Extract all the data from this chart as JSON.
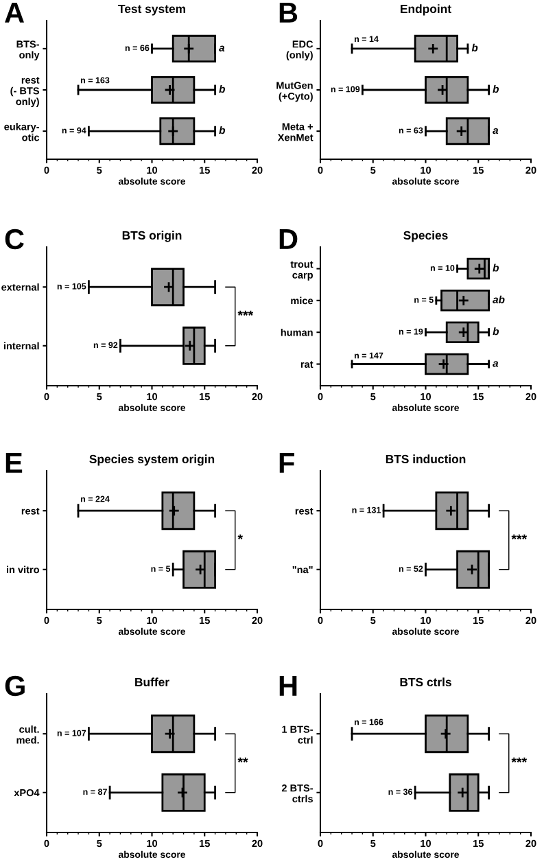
{
  "chart_data": [
    {
      "type": "box",
      "orientation": "horizontal",
      "title": "Test system",
      "xlabel": "absolute score",
      "xlim": [
        0,
        20
      ],
      "xticks": [
        0,
        5,
        10,
        15,
        20
      ],
      "color": "#999999",
      "categories": [
        "BTS-\nonly",
        "rest\n(- BTS\nonly)",
        "eukary-\notic"
      ],
      "boxes": [
        {
          "low": 10,
          "q1": 12,
          "median": 13.5,
          "q3": 16,
          "high": 16,
          "mean": 13.5
        },
        {
          "low": 3,
          "q1": 10,
          "median": 12,
          "q3": 14,
          "high": 16,
          "mean": 11.7
        },
        {
          "low": 4,
          "q1": 10.8,
          "median": 12,
          "q3": 14,
          "high": 16,
          "mean": 12
        }
      ],
      "annotations": [
        "A",
        {
          "text": "n = 66",
          "x": 10,
          "y": "BTS-\nonly"
        },
        {
          "text": "a",
          "x": 16,
          "y": "BTS-\nonly"
        },
        {
          "text": "n = 163",
          "x": 3,
          "y": "rest\n(- BTS\nonly)"
        },
        {
          "text": "b",
          "x": 16,
          "y": "rest\n(- BTS\nonly)"
        },
        {
          "text": "n = 94",
          "x": 4,
          "y": "eukary-\notic"
        },
        {
          "text": "b",
          "x": 16,
          "y": "eukary-\notic"
        }
      ]
    },
    {
      "type": "box",
      "orientation": "horizontal",
      "title": "Endpoint",
      "xlabel": "absolute score",
      "xlim": [
        0,
        20
      ],
      "xticks": [
        0,
        5,
        10,
        15,
        20
      ],
      "color": "#999999",
      "categories": [
        "EDC\n(only)",
        "MutGen\n(+Cyto)",
        "Meta +\nXenMet"
      ],
      "boxes": [
        {
          "low": 3,
          "q1": 9,
          "median": 12,
          "q3": 13,
          "high": 14,
          "mean": 10.7
        },
        {
          "low": 4,
          "q1": 10,
          "median": 12,
          "q3": 14,
          "high": 16,
          "mean": 11.6
        },
        {
          "low": 10,
          "q1": 12,
          "median": 14,
          "q3": 16,
          "high": 16,
          "mean": 13.4
        }
      ],
      "annotations": [
        "B",
        {
          "text": "n = 14",
          "x": 3,
          "y": "EDC\n(only)"
        },
        {
          "text": "b",
          "x": 14,
          "y": "EDC\n(only)"
        },
        {
          "text": "n = 109",
          "x": 4,
          "y": "MutGen\n(+Cyto)"
        },
        {
          "text": "b",
          "x": 16,
          "y": "MutGen\n(+Cyto)"
        },
        {
          "text": "n = 63",
          "x": 10,
          "y": "Meta +\nXenMet"
        },
        {
          "text": "a",
          "x": 16,
          "y": "Meta +\nXenMet"
        }
      ]
    },
    {
      "type": "box",
      "orientation": "horizontal",
      "title": "BTS origin",
      "xlabel": "absolute score",
      "xlim": [
        0,
        20
      ],
      "xticks": [
        0,
        5,
        10,
        15,
        20
      ],
      "color": "#999999",
      "categories": [
        "external",
        "internal"
      ],
      "boxes": [
        {
          "low": 4,
          "q1": 10,
          "median": 12,
          "q3": 13,
          "high": 16,
          "mean": 11.6
        },
        {
          "low": 7,
          "q1": 13,
          "median": 14,
          "q3": 15,
          "high": 16,
          "mean": 13.6
        }
      ],
      "annotations": [
        "C",
        "***",
        {
          "text": "n = 105",
          "x": 4,
          "y": "external"
        },
        {
          "text": "n = 92",
          "x": 7,
          "y": "internal"
        }
      ]
    },
    {
      "type": "box",
      "orientation": "horizontal",
      "title": "Species",
      "xlabel": "absolute score",
      "xlim": [
        0,
        20
      ],
      "xticks": [
        0,
        5,
        10,
        15,
        20
      ],
      "color": "#999999",
      "categories": [
        "trout\ncarp",
        "mice",
        "human",
        "rat"
      ],
      "boxes": [
        {
          "low": 13,
          "q1": 14,
          "median": 15.6,
          "q3": 16,
          "high": 16,
          "mean": 15.1
        },
        {
          "low": 11,
          "q1": 11.5,
          "median": 13,
          "q3": 16,
          "high": 16,
          "mean": 13.6
        },
        {
          "low": 10,
          "q1": 12,
          "median": 14,
          "q3": 15,
          "high": 16,
          "mean": 13.6
        },
        {
          "low": 3,
          "q1": 10,
          "median": 12,
          "q3": 14,
          "high": 16,
          "mean": 11.7
        }
      ],
      "annotations": [
        "D",
        {
          "text": "n = 10",
          "x": 13,
          "y": "trout\ncarp"
        },
        {
          "text": "b",
          "x": 16,
          "y": "trout\ncarp"
        },
        {
          "text": "n = 5",
          "x": 11,
          "y": "mice"
        },
        {
          "text": "ab",
          "x": 16,
          "y": "mice"
        },
        {
          "text": "n = 19",
          "x": 10,
          "y": "human"
        },
        {
          "text": "b",
          "x": 16,
          "y": "human"
        },
        {
          "text": "n = 147",
          "x": 3,
          "y": "rat"
        },
        {
          "text": "a",
          "x": 16,
          "y": "rat"
        }
      ]
    },
    {
      "type": "box",
      "orientation": "horizontal",
      "title": "Species system origin",
      "xlabel": "absolute score",
      "xlim": [
        0,
        20
      ],
      "xticks": [
        0,
        5,
        10,
        15,
        20
      ],
      "color": "#999999",
      "categories": [
        "rest",
        "in vitro"
      ],
      "boxes": [
        {
          "low": 3,
          "q1": 11,
          "median": 12,
          "q3": 14,
          "high": 16,
          "mean": 12.1
        },
        {
          "low": 12,
          "q1": 13,
          "median": 15,
          "q3": 16,
          "high": 16,
          "mean": 14.6
        }
      ],
      "annotations": [
        "E",
        "*",
        {
          "text": "n = 224",
          "x": 3,
          "y": "rest"
        },
        {
          "text": "n = 5",
          "x": 12,
          "y": "in vitro"
        }
      ]
    },
    {
      "type": "box",
      "orientation": "horizontal",
      "title": "BTS induction",
      "xlabel": "absolute score",
      "xlim": [
        0,
        20
      ],
      "xticks": [
        0,
        5,
        10,
        15,
        20
      ],
      "color": "#999999",
      "categories": [
        "rest",
        "\"na\""
      ],
      "boxes": [
        {
          "low": 6,
          "q1": 11,
          "median": 13,
          "q3": 14,
          "high": 16,
          "mean": 12.4
        },
        {
          "low": 10,
          "q1": 13,
          "median": 15,
          "q3": 16,
          "high": 16,
          "mean": 14.4
        }
      ],
      "annotations": [
        "F",
        "***",
        {
          "text": "n = 131",
          "x": 6,
          "y": "rest"
        },
        {
          "text": "n = 52",
          "x": 10,
          "y": "\"na\""
        }
      ]
    },
    {
      "type": "box",
      "orientation": "horizontal",
      "title": "Buffer",
      "xlabel": "absolute score",
      "xlim": [
        0,
        20
      ],
      "xticks": [
        0,
        5,
        10,
        15,
        20
      ],
      "color": "#999999",
      "categories": [
        "cult.\nmed.",
        "xPO4"
      ],
      "boxes": [
        {
          "low": 4,
          "q1": 10,
          "median": 12,
          "q3": 14,
          "high": 16,
          "mean": 11.7
        },
        {
          "low": 6,
          "q1": 11,
          "median": 13,
          "q3": 15,
          "high": 16,
          "mean": 12.9
        }
      ],
      "annotations": [
        "G",
        "**",
        {
          "text": "n = 107",
          "x": 4,
          "y": "cult.\nmed."
        },
        {
          "text": "n = 87",
          "x": 6,
          "y": "xPO4"
        }
      ]
    },
    {
      "type": "box",
      "orientation": "horizontal",
      "title": "BTS ctrls",
      "xlabel": "absolute score",
      "xlim": [
        0,
        20
      ],
      "xticks": [
        0,
        5,
        10,
        15,
        20
      ],
      "color": "#999999",
      "categories": [
        "1 BTS-\nctrl",
        "2 BTS-\nctrls"
      ],
      "boxes": [
        {
          "low": 3,
          "q1": 10,
          "median": 12,
          "q3": 14,
          "high": 16,
          "mean": 11.9
        },
        {
          "low": 9,
          "q1": 12.3,
          "median": 14,
          "q3": 15,
          "high": 16,
          "mean": 13.5
        }
      ],
      "annotations": [
        "H",
        "***",
        {
          "text": "n = 166",
          "x": 3,
          "y": "1 BTS-\nctrl"
        },
        {
          "text": "n = 36",
          "x": 9,
          "y": "2 BTS-\nctrls"
        }
      ]
    }
  ]
}
